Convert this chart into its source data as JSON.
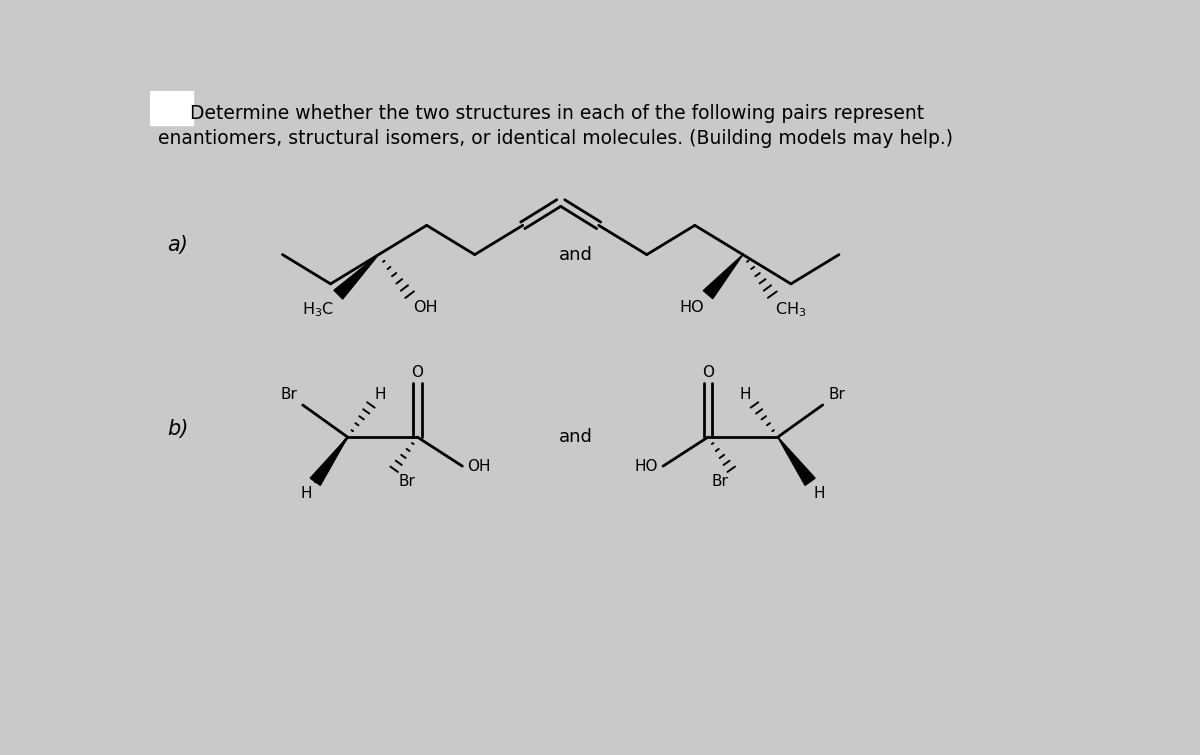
{
  "background_color": "#c9c9c9",
  "title_line1": "Determine whether the two structures in each of the following pairs represent",
  "title_line2": "enantiomers, structural isomers, or identical molecules. (Building models may help.)",
  "title_fontsize": 13.5,
  "label_a": "a)",
  "label_b": "b)",
  "label_fontsize": 15,
  "and_fontsize": 13,
  "text_color": "#000000",
  "lw": 2.0
}
